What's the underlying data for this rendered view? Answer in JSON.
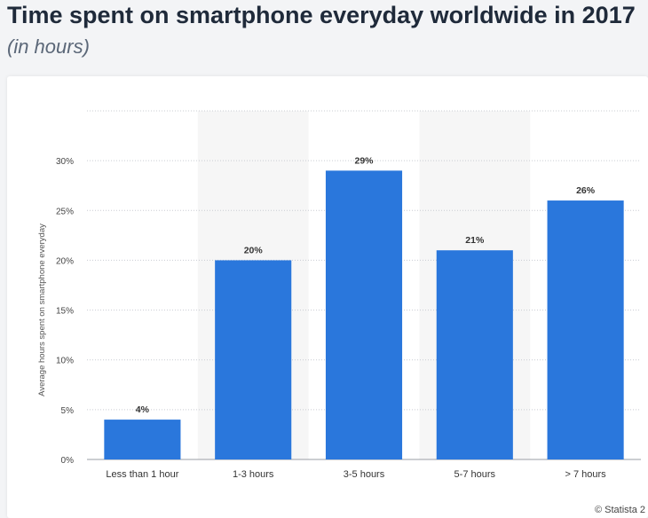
{
  "header": {
    "title": "Time spent on smartphone everyday worldwide in 2017",
    "subtitle": "(in hours)"
  },
  "footer": {
    "source": "© Statista 2"
  },
  "colors": {
    "bar": "#2a77dc",
    "band": "#f6f6f6",
    "grid": "#c9ccd2",
    "tick_text": "#444444",
    "label_text": "#333333"
  },
  "chart_data": {
    "type": "bar",
    "title": "Time spent on smartphone everyday worldwide in 2017",
    "subtitle": "(in hours)",
    "ylabel": "Average hours spent on smartphone everyday",
    "xlabel": "",
    "categories": [
      "Less than 1 hour",
      "1-3 hours",
      "3-5 hours",
      "5-7 hours",
      "> 7 hours"
    ],
    "values": [
      4,
      20,
      29,
      21,
      26
    ],
    "value_labels": [
      "4%",
      "20%",
      "29%",
      "21%",
      "26%"
    ],
    "yticks": [
      0,
      5,
      10,
      15,
      20,
      25,
      30
    ],
    "ytick_labels": [
      "0%",
      "5%",
      "10%",
      "15%",
      "20%",
      "25%",
      "30%"
    ],
    "ylim": [
      0,
      35
    ],
    "grid": true,
    "legend": "none"
  }
}
